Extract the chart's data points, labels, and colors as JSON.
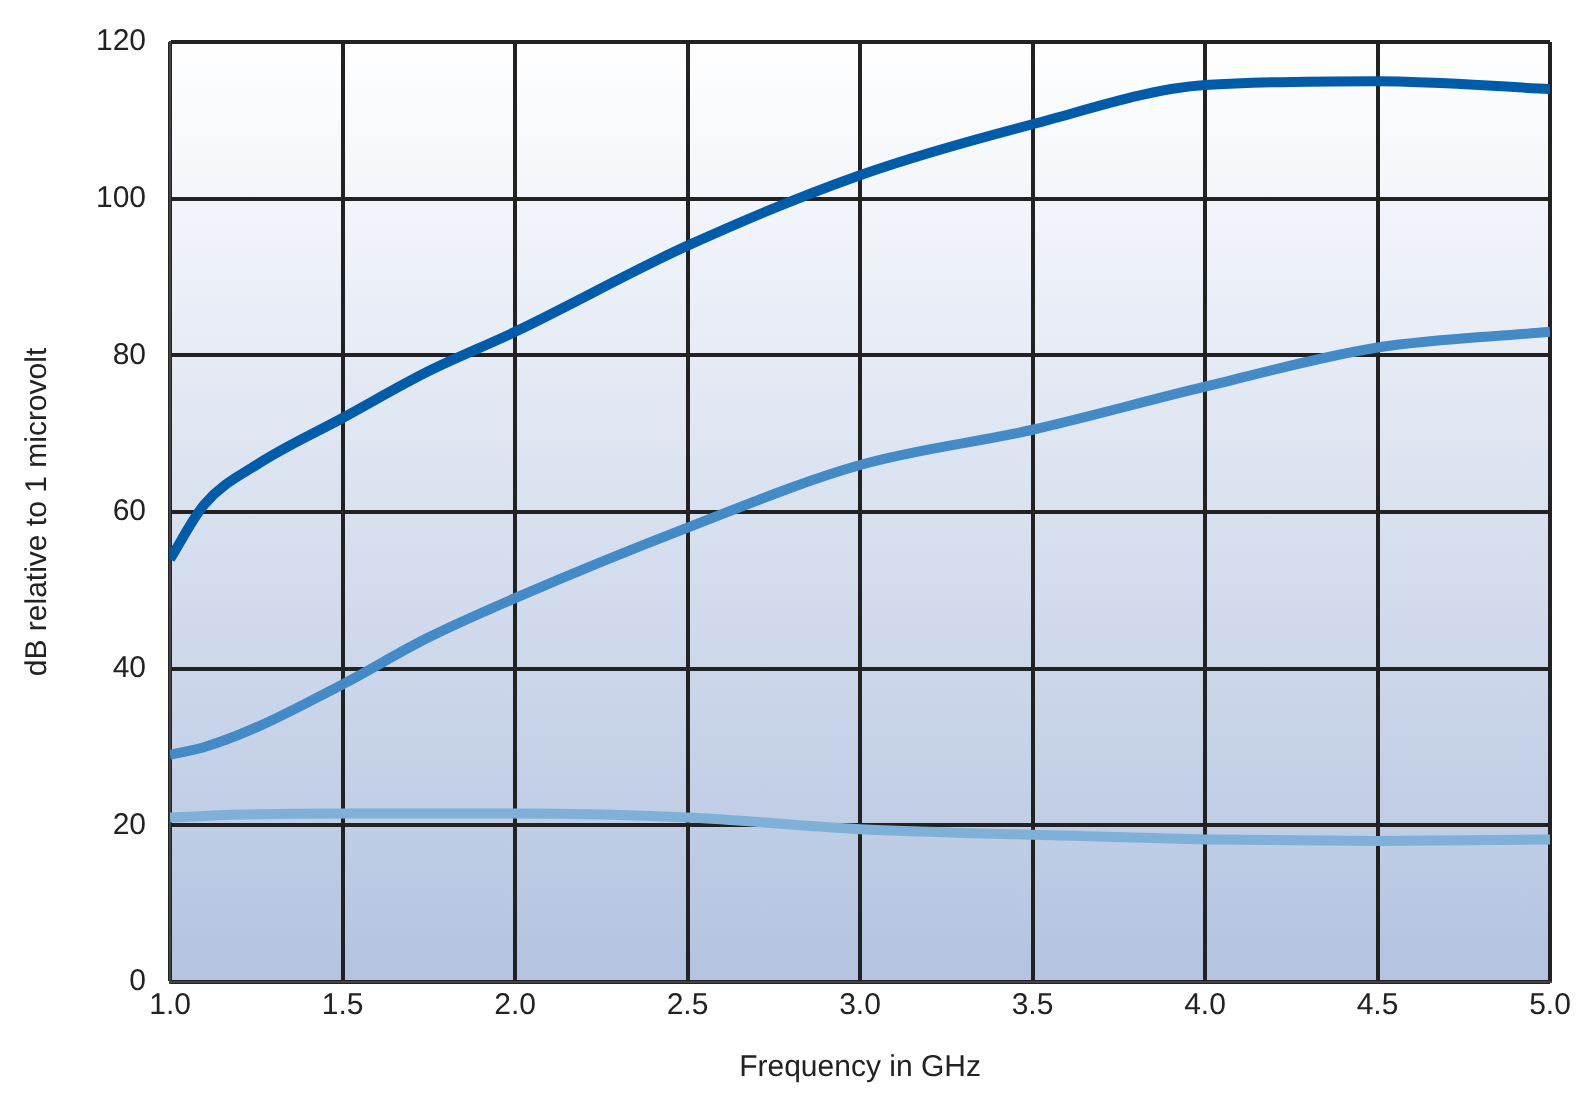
{
  "chart_data": {
    "type": "line",
    "xlabel": "Frequency in GHz",
    "ylabel": "dB relative to 1 microvolt",
    "xlim": [
      1.0,
      5.0
    ],
    "xticks": [
      {
        "value": 1,
        "label": "1.0"
      },
      {
        "value": 1.5,
        "label": "1.5"
      },
      {
        "value": 2,
        "label": "2.0"
      },
      {
        "value": 2.5,
        "label": "2.5"
      },
      {
        "value": 3,
        "label": "3.0"
      },
      {
        "value": 3.5,
        "label": "3.5"
      },
      {
        "value": 4,
        "label": "4.0"
      },
      {
        "value": 4.5,
        "label": "4.5"
      },
      {
        "value": 5,
        "label": "5.0"
      }
    ],
    "ylim": [
      0,
      120
    ],
    "yticks": [
      0,
      20,
      40,
      60,
      80,
      100,
      120
    ],
    "x": [
      1.0,
      1.1,
      1.25,
      1.5,
      1.75,
      2.0,
      2.5,
      3.0,
      3.5,
      4.0,
      4.5,
      5.0
    ],
    "series": [
      {
        "color": "#005ba8",
        "values": [
          54,
          61,
          66,
          72,
          78,
          83,
          94,
          103,
          109.5,
          114.5,
          115,
          114
        ]
      },
      {
        "color": "#438ac6",
        "values": [
          29,
          30,
          32.5,
          38,
          44,
          49,
          58,
          66,
          70.5,
          76,
          81,
          83
        ]
      },
      {
        "color": "#7fb0d8",
        "values": [
          21,
          21.2,
          21.4,
          21.5,
          21.5,
          21.5,
          21,
          19.5,
          18.8,
          18.2,
          18,
          18.2
        ]
      }
    ],
    "grid": true,
    "legend": false,
    "marker": "none",
    "line_style": "solid"
  }
}
